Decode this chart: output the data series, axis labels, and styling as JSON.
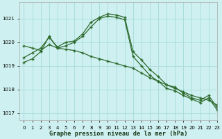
{
  "title": "Graphe pression niveau de la mer (hPa)",
  "background_color": "#cff0f0",
  "grid_color": "#aadddd",
  "line_color": "#2d6a2d",
  "xlim": [
    -0.5,
    23
  ],
  "ylim": [
    1016.7,
    1021.7
  ],
  "yticks": [
    1017,
    1018,
    1019,
    1020,
    1021
  ],
  "xticks": [
    0,
    1,
    2,
    3,
    4,
    5,
    6,
    7,
    8,
    9,
    10,
    11,
    12,
    13,
    14,
    15,
    16,
    17,
    18,
    19,
    20,
    21,
    22,
    23
  ],
  "line1_x": [
    0,
    1,
    2,
    3,
    4,
    5,
    6,
    7,
    8,
    9,
    10,
    11,
    12,
    13,
    14,
    15,
    16,
    17,
    18,
    19,
    20,
    21,
    22,
    23
  ],
  "line1_y": [
    1019.35,
    1019.55,
    1019.75,
    1020.2,
    1019.8,
    1020.0,
    1020.05,
    1020.35,
    1020.85,
    1021.05,
    1021.2,
    1021.15,
    1021.05,
    1019.6,
    1019.25,
    1018.85,
    1018.55,
    1018.2,
    1018.1,
    1017.85,
    1017.65,
    1017.55,
    1017.75,
    1017.25
  ],
  "line2_x": [
    0,
    1,
    2,
    3,
    4,
    5,
    6,
    7,
    8,
    9,
    10,
    11,
    12,
    13,
    14,
    15,
    16,
    17,
    18,
    19,
    20,
    21,
    22,
    23
  ],
  "line2_y": [
    1019.15,
    1019.3,
    1019.6,
    1020.25,
    1019.75,
    1019.85,
    1020.0,
    1020.25,
    1020.65,
    1021.0,
    1021.1,
    1021.05,
    1020.95,
    1019.4,
    1019.0,
    1018.6,
    1018.35,
    1018.05,
    1017.95,
    1017.75,
    1017.6,
    1017.45,
    1017.65,
    1017.15
  ],
  "line3_x": [
    0,
    1,
    2,
    3,
    4,
    5,
    6,
    7,
    8,
    9,
    10,
    11,
    12,
    13,
    14,
    15,
    16,
    17,
    18,
    19,
    20,
    21,
    22,
    23
  ],
  "line3_y": [
    1019.85,
    1019.75,
    1019.65,
    1019.9,
    1019.75,
    1019.7,
    1019.65,
    1019.55,
    1019.4,
    1019.3,
    1019.2,
    1019.1,
    1019.0,
    1018.9,
    1018.7,
    1018.5,
    1018.35,
    1018.2,
    1018.05,
    1017.9,
    1017.75,
    1017.65,
    1017.55,
    1017.35
  ]
}
